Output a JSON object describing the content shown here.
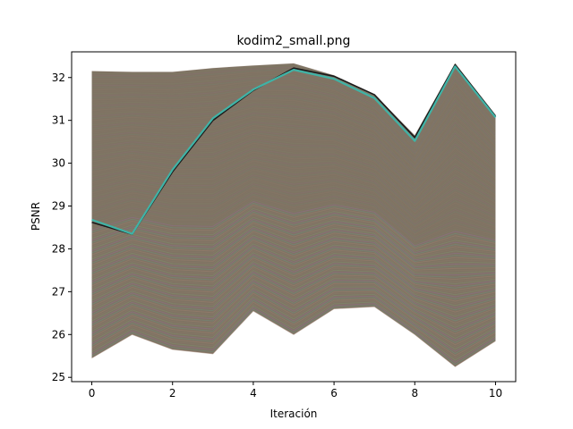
{
  "chart_data": {
    "type": "line",
    "title": "kodim2_small.png",
    "xlabel": "Iteración",
    "ylabel": "PSNR",
    "xlim": [
      -0.5,
      10.5
    ],
    "ylim": [
      24.9,
      32.6
    ],
    "xticks": [
      0,
      2,
      4,
      6,
      8,
      10
    ],
    "yticks": [
      25,
      26,
      27,
      28,
      29,
      30,
      31,
      32
    ],
    "grid": false,
    "x": [
      0,
      1,
      2,
      3,
      4,
      5,
      6,
      7,
      8,
      9,
      10
    ],
    "band": {
      "colors": [
        "#9a7f6f",
        "#6f8f7f",
        "#8f6f8f",
        "#7f8f6f",
        "#8a7a6a"
      ],
      "fill": "#7f7363",
      "upper": [
        32.15,
        32.13,
        32.13,
        32.22,
        32.28,
        32.33,
        32.05,
        31.6,
        30.65,
        32.33,
        31.12
      ],
      "lower": [
        25.45,
        26.0,
        25.65,
        25.55,
        26.55,
        26.0,
        26.6,
        26.65,
        26.0,
        25.25,
        25.85
      ]
    },
    "series": [
      {
        "values": [
          28.68,
          28.35,
          29.85,
          31.05,
          31.72,
          32.18,
          31.97,
          31.52,
          30.52,
          32.26,
          31.07
        ],
        "color": "#3fb3a6"
      },
      {
        "values": [
          28.62,
          28.34,
          29.8,
          31.0,
          31.7,
          32.22,
          32.03,
          31.6,
          30.6,
          32.3,
          31.1
        ],
        "color": "#1a1a1a"
      }
    ]
  }
}
